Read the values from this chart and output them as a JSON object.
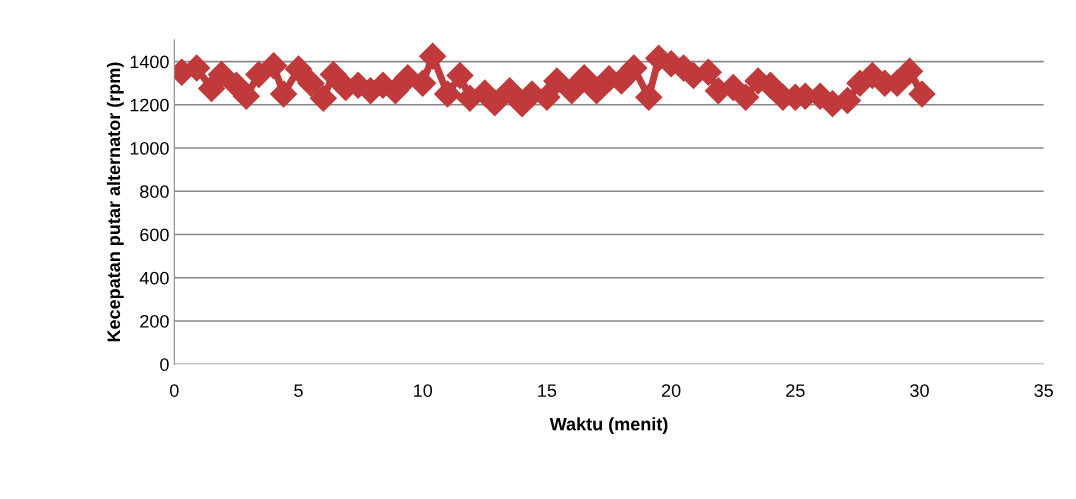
{
  "chart_data": {
    "type": "line",
    "xlabel": "Waktu (menit)",
    "ylabel": "Kecepatan putar alternator (rpm)",
    "xlim": [
      0,
      35
    ],
    "xticks": [
      0,
      5,
      10,
      15,
      20,
      25,
      30,
      35
    ],
    "ylim": [
      0,
      1500
    ],
    "yticks": [
      0,
      200,
      400,
      600,
      800,
      1000,
      1200,
      1400
    ],
    "grid": "y",
    "marker": "diamond",
    "line_style": "solid",
    "series": [
      {
        "color": "#c0393b",
        "x": [
          0.3,
          0.9,
          1.5,
          1.9,
          2.5,
          2.9,
          3.4,
          4.0,
          4.4,
          5.0,
          5.5,
          6.0,
          6.4,
          6.9,
          7.4,
          7.9,
          8.4,
          8.9,
          9.4,
          10.0,
          10.4,
          11.0,
          11.5,
          11.9,
          12.5,
          12.9,
          13.5,
          14.0,
          14.4,
          15.0,
          15.4,
          16.0,
          16.5,
          17.0,
          17.5,
          18.0,
          18.5,
          19.1,
          19.5,
          20.0,
          20.5,
          20.9,
          21.5,
          21.9,
          22.5,
          23.0,
          23.5,
          24.0,
          24.5,
          25.0,
          25.4,
          26.0,
          26.5,
          27.1,
          27.6,
          28.1,
          28.6,
          29.1,
          29.6,
          30.1
        ],
        "values": [
          1350,
          1370,
          1275,
          1340,
          1290,
          1240,
          1340,
          1380,
          1250,
          1365,
          1300,
          1230,
          1340,
          1280,
          1290,
          1265,
          1290,
          1265,
          1325,
          1300,
          1425,
          1250,
          1335,
          1230,
          1255,
          1210,
          1265,
          1205,
          1250,
          1235,
          1310,
          1265,
          1325,
          1265,
          1320,
          1310,
          1370,
          1235,
          1415,
          1390,
          1370,
          1335,
          1350,
          1265,
          1280,
          1235,
          1310,
          1290,
          1235,
          1235,
          1240,
          1240,
          1205,
          1220,
          1300,
          1335,
          1300,
          1300,
          1355,
          1250
        ]
      }
    ]
  }
}
